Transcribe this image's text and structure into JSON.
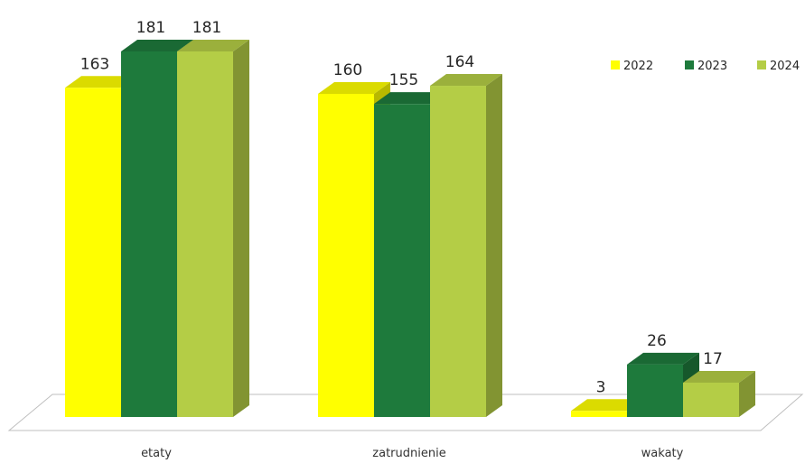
{
  "chart_data": {
    "type": "bar",
    "variant": "3d-clustered-column",
    "title": "",
    "xlabel": "",
    "ylabel": "",
    "categories": [
      "etaty",
      "zatrudnienie",
      "wakaty"
    ],
    "series": [
      {
        "name": "2022",
        "values": [
          163,
          160,
          3
        ],
        "color": "#ffff00"
      },
      {
        "name": "2023",
        "values": [
          181,
          155,
          26
        ],
        "color": "#1e7a3c"
      },
      {
        "name": "2024",
        "values": [
          181,
          164,
          17
        ],
        "color": "#b4cd46"
      }
    ],
    "ylim": [
      0,
      181
    ],
    "grid": false,
    "legend_position": "top-right",
    "data_labels": true
  }
}
